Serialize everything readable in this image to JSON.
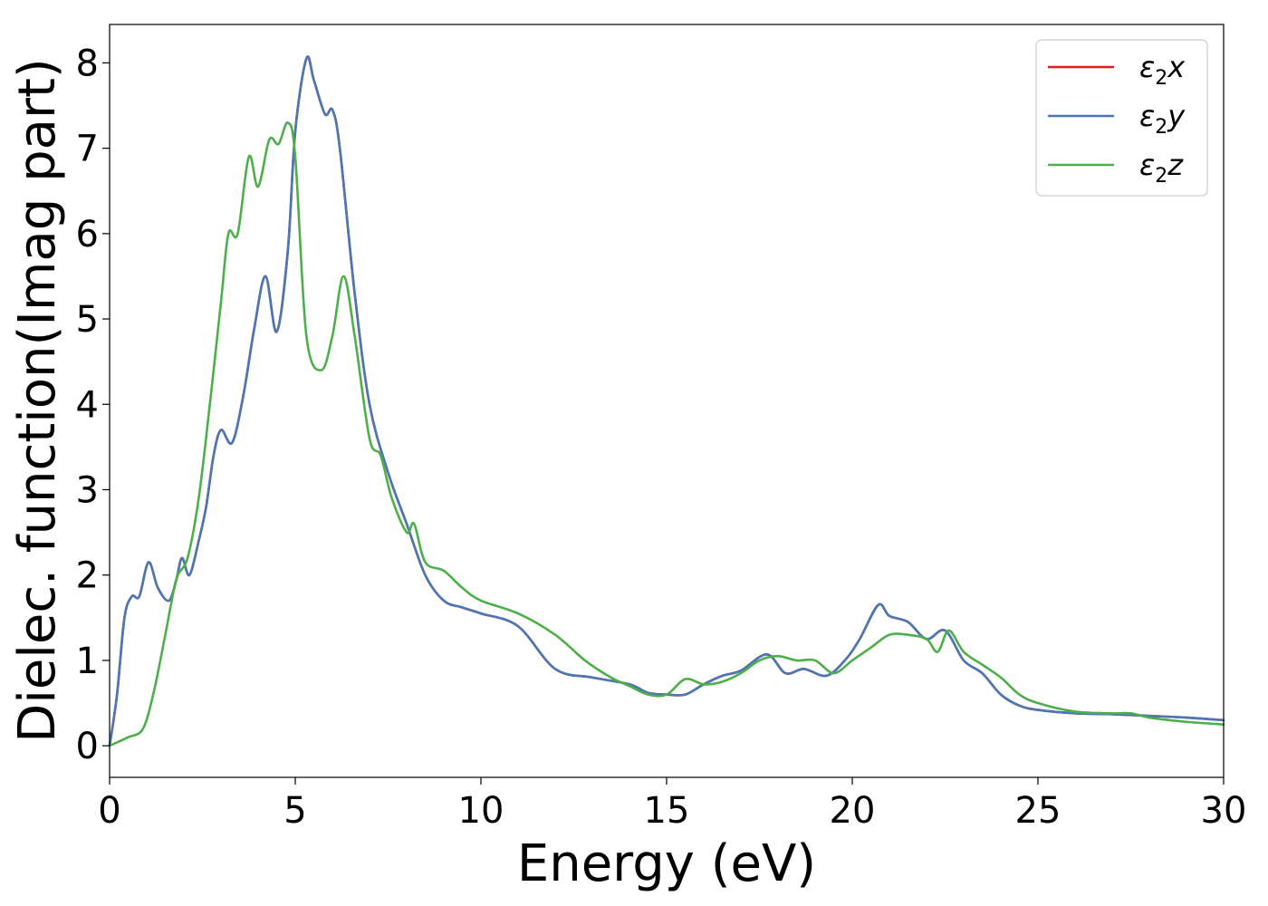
{
  "chart_data": {
    "type": "line",
    "title": "",
    "xlabel": "Energy (eV)",
    "ylabel": "Dielec. function(Imag part)",
    "xlim": [
      0,
      30
    ],
    "ylim": [
      -0.37,
      8.45
    ],
    "xticks": [
      0,
      5,
      10,
      15,
      20,
      25,
      30
    ],
    "yticks": [
      0,
      1,
      2,
      3,
      4,
      5,
      6,
      7,
      8
    ],
    "grid": false,
    "legend_position": "top-right",
    "series": [
      {
        "name": "ε₂x",
        "legend_base": "ε",
        "legend_sub": "2",
        "legend_tail": "x",
        "color": "#e41a1c",
        "x": [
          0,
          0.2,
          0.4,
          0.6,
          0.8,
          1.05,
          1.3,
          1.6,
          1.8,
          1.95,
          2.15,
          2.4,
          2.6,
          2.8,
          3.0,
          3.3,
          3.6,
          3.9,
          4.2,
          4.5,
          4.8,
          5.0,
          5.3,
          5.5,
          5.8,
          6.0,
          6.2,
          6.6,
          7.0,
          7.5,
          8.0,
          8.5,
          9.0,
          9.5,
          10.0,
          11.0,
          12.0,
          13.0,
          14.0,
          14.5,
          15.0,
          15.5,
          16.0,
          16.5,
          17.0,
          17.7,
          18.2,
          18.7,
          19.3,
          19.8,
          20.2,
          20.7,
          21.0,
          21.5,
          22.0,
          22.5,
          23.0,
          23.5,
          24.0,
          24.5,
          25.0,
          26.0,
          27.0,
          28.0,
          29.0,
          30.0
        ],
        "y": [
          0.0,
          0.6,
          1.5,
          1.75,
          1.75,
          2.15,
          1.85,
          1.7,
          1.95,
          2.2,
          2.0,
          2.4,
          2.8,
          3.4,
          3.7,
          3.55,
          4.1,
          4.9,
          5.5,
          4.85,
          5.8,
          7.2,
          8.05,
          7.8,
          7.4,
          7.45,
          7.0,
          5.3,
          4.0,
          3.2,
          2.6,
          2.0,
          1.7,
          1.62,
          1.55,
          1.4,
          0.9,
          0.8,
          0.72,
          0.62,
          0.6,
          0.6,
          0.72,
          0.82,
          0.88,
          1.07,
          0.85,
          0.9,
          0.82,
          1.0,
          1.25,
          1.65,
          1.52,
          1.45,
          1.25,
          1.35,
          1.0,
          0.85,
          0.6,
          0.47,
          0.42,
          0.38,
          0.37,
          0.35,
          0.33,
          0.3
        ]
      },
      {
        "name": "ε₂y",
        "legend_base": "ε",
        "legend_sub": "2",
        "legend_tail": "y",
        "color": "#4878b5",
        "x": [
          0,
          0.2,
          0.4,
          0.6,
          0.8,
          1.05,
          1.3,
          1.6,
          1.8,
          1.95,
          2.15,
          2.4,
          2.6,
          2.8,
          3.0,
          3.3,
          3.6,
          3.9,
          4.2,
          4.5,
          4.8,
          5.0,
          5.3,
          5.5,
          5.8,
          6.0,
          6.2,
          6.6,
          7.0,
          7.5,
          8.0,
          8.5,
          9.0,
          9.5,
          10.0,
          11.0,
          12.0,
          13.0,
          14.0,
          14.5,
          15.0,
          15.5,
          16.0,
          16.5,
          17.0,
          17.7,
          18.2,
          18.7,
          19.3,
          19.8,
          20.2,
          20.7,
          21.0,
          21.5,
          22.0,
          22.5,
          23.0,
          23.5,
          24.0,
          24.5,
          25.0,
          26.0,
          27.0,
          28.0,
          29.0,
          30.0
        ],
        "y": [
          0.0,
          0.6,
          1.5,
          1.75,
          1.75,
          2.15,
          1.85,
          1.7,
          1.95,
          2.2,
          2.0,
          2.4,
          2.8,
          3.4,
          3.7,
          3.55,
          4.1,
          4.9,
          5.5,
          4.85,
          5.8,
          7.2,
          8.05,
          7.8,
          7.4,
          7.45,
          7.0,
          5.3,
          4.0,
          3.2,
          2.6,
          2.0,
          1.7,
          1.62,
          1.55,
          1.4,
          0.9,
          0.8,
          0.72,
          0.62,
          0.6,
          0.6,
          0.72,
          0.82,
          0.88,
          1.07,
          0.85,
          0.9,
          0.82,
          1.0,
          1.25,
          1.65,
          1.52,
          1.45,
          1.25,
          1.35,
          1.0,
          0.85,
          0.6,
          0.47,
          0.42,
          0.38,
          0.37,
          0.35,
          0.33,
          0.3
        ]
      },
      {
        "name": "ε₂z",
        "legend_base": "ε",
        "legend_sub": "2",
        "legend_tail": "z",
        "color": "#4daf4a",
        "x": [
          0,
          0.5,
          0.9,
          1.2,
          1.5,
          1.8,
          2.1,
          2.4,
          2.7,
          3.0,
          3.2,
          3.45,
          3.75,
          4.0,
          4.3,
          4.55,
          4.8,
          5.0,
          5.3,
          5.7,
          6.0,
          6.3,
          6.6,
          7.0,
          7.3,
          7.6,
          8.0,
          8.2,
          8.5,
          9.0,
          9.5,
          10.0,
          11.0,
          12.0,
          12.8,
          13.5,
          14.0,
          14.5,
          15.0,
          15.5,
          16.0,
          16.5,
          17.0,
          17.5,
          18.0,
          18.5,
          19.0,
          19.5,
          20.0,
          20.5,
          21.0,
          21.5,
          22.0,
          22.3,
          22.6,
          23.0,
          23.5,
          24.0,
          24.5,
          25.0,
          26.0,
          27.0,
          27.5,
          28.0,
          29.0,
          30.0
        ],
        "y": [
          0.0,
          0.1,
          0.2,
          0.65,
          1.3,
          1.95,
          2.2,
          2.9,
          4.0,
          5.2,
          6.0,
          6.0,
          6.9,
          6.55,
          7.1,
          7.05,
          7.3,
          6.9,
          4.8,
          4.4,
          4.8,
          5.5,
          4.8,
          3.6,
          3.4,
          2.9,
          2.5,
          2.6,
          2.15,
          2.05,
          1.85,
          1.7,
          1.55,
          1.3,
          1.0,
          0.8,
          0.7,
          0.6,
          0.6,
          0.78,
          0.72,
          0.75,
          0.85,
          1.0,
          1.05,
          1.0,
          1.0,
          0.85,
          1.0,
          1.15,
          1.3,
          1.3,
          1.25,
          1.1,
          1.35,
          1.1,
          0.95,
          0.8,
          0.6,
          0.5,
          0.4,
          0.38,
          0.38,
          0.33,
          0.28,
          0.25
        ]
      }
    ]
  }
}
